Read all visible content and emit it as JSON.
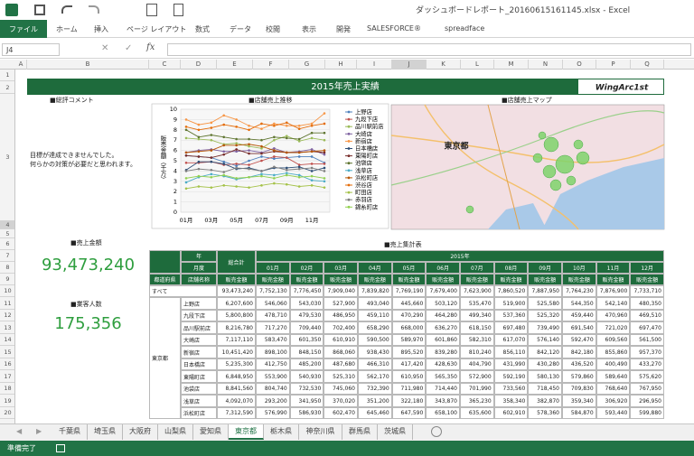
{
  "window": {
    "title": "ダッシュボードレポート_20160615161145.xlsx - Excel"
  },
  "ribbon_tabs": [
    "ファイル",
    "ホーム",
    "挿入",
    "ページ レイアウト",
    "数式",
    "データ",
    "校閲",
    "表示",
    "開発",
    "SALESFORCE®",
    "spreadface"
  ],
  "name_box": "J4",
  "function_label": "fx",
  "column_headers": [
    "A",
    "B",
    "C",
    "D",
    "E",
    "F",
    "G",
    "H",
    "I",
    "J",
    "K",
    "L",
    "M",
    "N",
    "O",
    "P",
    "Q"
  ],
  "row_numbers": [
    "1",
    "2",
    "3",
    "4",
    "5",
    "6",
    "7",
    "8",
    "9",
    "10",
    "11",
    "12",
    "13",
    "14",
    "15",
    "16",
    "17",
    "18",
    "19",
    "20"
  ],
  "dashboard": {
    "title": "2015年売上実績",
    "logo": "WingArc1st",
    "comment_heading": "■総評コメント",
    "comment_lines": [
      "目標が達成できませんでした。",
      "何らかの対策が必要だと思われます。"
    ],
    "chart_heading": "■店舗売上推移",
    "map_heading": "■店舗売上マップ",
    "sales_heading": "■売上金額",
    "sales_value": "93,473,240",
    "customers_heading": "■業客人数",
    "customers_value": "175,356",
    "table_heading": "■売上集計表"
  },
  "line_chart": {
    "type": "line",
    "y_label": "販売金額（千万）",
    "categories": [
      "01月",
      null,
      "03月",
      null,
      "05月",
      null,
      "07月",
      null,
      "09月",
      null,
      "11月",
      null
    ],
    "ylim": [
      0,
      10
    ],
    "yticks": [
      0,
      1,
      2,
      3,
      4,
      5,
      6,
      7,
      8,
      9,
      10
    ],
    "grid": true,
    "series": [
      {
        "name": "上野店",
        "color": "#4f81bd",
        "values": [
          5.5,
          5.4,
          5.3,
          4.9,
          4.5,
          5.0,
          5.4,
          5.2,
          5.3,
          5.4,
          5.4,
          4.8
        ]
      },
      {
        "name": "九段下店",
        "color": "#c0504d",
        "values": [
          4.8,
          4.8,
          4.9,
          4.6,
          4.7,
          4.6,
          5.0,
          5.4,
          5.3,
          4.6,
          4.7,
          4.7
        ]
      },
      {
        "name": "品川駅前店",
        "color": "#9bbb59",
        "values": [
          7.2,
          7.1,
          7.0,
          6.6,
          6.7,
          6.4,
          6.2,
          7.0,
          7.4,
          6.9,
          7.2,
          7.0
        ]
      },
      {
        "name": "大崎店",
        "color": "#8064a2",
        "values": [
          5.8,
          6.0,
          6.1,
          5.9,
          5.9,
          6.0,
          5.8,
          6.2,
          5.8,
          5.9,
          6.1,
          5.6
        ]
      },
      {
        "name": "新宿店",
        "color": "#f79646",
        "values": [
          9.0,
          8.5,
          8.7,
          9.4,
          9.0,
          8.4,
          8.1,
          8.6,
          8.4,
          8.4,
          8.6,
          9.6
        ]
      },
      {
        "name": "日本橋店",
        "color": "#2c4d75",
        "values": [
          4.1,
          4.9,
          4.9,
          4.7,
          4.2,
          4.3,
          4.0,
          4.3,
          4.3,
          4.4,
          4.0,
          4.3
        ]
      },
      {
        "name": "東陽町店",
        "color": "#772c2a",
        "values": [
          5.5,
          5.4,
          5.3,
          5.6,
          6.1,
          5.7,
          5.7,
          5.9,
          5.8,
          5.8,
          5.9,
          5.8
        ]
      },
      {
        "name": "池袋店",
        "color": "#5f7530",
        "values": [
          8.0,
          7.3,
          7.5,
          7.3,
          7.1,
          7.1,
          7.0,
          7.3,
          7.2,
          7.1,
          7.7,
          7.7
        ]
      },
      {
        "name": "浅草店",
        "color": "#4bacc6",
        "values": [
          2.9,
          3.4,
          3.7,
          3.5,
          3.2,
          3.4,
          3.7,
          3.6,
          3.8,
          3.6,
          3.1,
          3.0
        ]
      },
      {
        "name": "浜松町店",
        "color": "#b65708",
        "values": [
          5.8,
          5.9,
          6.0,
          6.5,
          6.5,
          6.6,
          6.4,
          6.0,
          5.8,
          5.8,
          5.9,
          6.0
        ]
      },
      {
        "name": "渋谷店",
        "color": "#e46c0a",
        "values": [
          8.3,
          8.0,
          8.2,
          8.5,
          8.3,
          8.0,
          8.6,
          8.4,
          8.7,
          8.1,
          8.4,
          8.6
        ]
      },
      {
        "name": "町田店",
        "color": "#a5c249",
        "values": [
          2.3,
          2.5,
          2.4,
          2.6,
          2.5,
          2.4,
          2.6,
          2.8,
          2.7,
          2.5,
          2.6,
          2.4
        ]
      },
      {
        "name": "赤羽店",
        "color": "#7f7f7f",
        "values": [
          4.0,
          4.2,
          4.1,
          3.9,
          4.3,
          4.2,
          4.0,
          4.4,
          4.1,
          4.2,
          4.3,
          4.0
        ]
      },
      {
        "name": "錦糸町店",
        "color": "#92d050",
        "values": [
          3.3,
          3.5,
          3.4,
          3.6,
          3.3,
          3.4,
          3.5,
          3.3,
          3.6,
          3.4,
          3.5,
          3.3
        ]
      }
    ]
  },
  "map": {
    "labels": [
      "東京都"
    ]
  },
  "table": {
    "year_label": "年",
    "year_value": "2015年",
    "month_label": "月度",
    "total_label": "総合計",
    "pref_label": "都道府県",
    "store_label": "店舗名称",
    "metric": "販売金額",
    "months": [
      "01月",
      "02月",
      "03月",
      "04月",
      "05月",
      "06月",
      "07月",
      "08月",
      "09月",
      "10月",
      "11月",
      "12月"
    ],
    "all_label": "すべて",
    "all_row": [
      "93,473,240",
      "7,752,130",
      "7,776,450",
      "7,909,040",
      "7,839,820",
      "7,769,190",
      "7,679,400",
      "7,623,900",
      "7,860,520",
      "7,887,950",
      "7,764,230",
      "7,876,900",
      "7,733,710"
    ],
    "prefecture": "東京都",
    "rows": [
      {
        "store": "上野店",
        "values": [
          "6,207,600",
          "546,060",
          "543,030",
          "527,900",
          "493,040",
          "445,660",
          "503,120",
          "535,470",
          "519,900",
          "525,580",
          "544,350",
          "542,140",
          "480,350"
        ]
      },
      {
        "store": "九段下店",
        "values": [
          "5,800,800",
          "478,710",
          "479,530",
          "486,950",
          "459,110",
          "470,290",
          "464,280",
          "499,340",
          "537,360",
          "525,320",
          "459,440",
          "470,960",
          "469,510"
        ]
      },
      {
        "store": "品川駅前店",
        "values": [
          "8,216,780",
          "717,270",
          "709,440",
          "702,400",
          "658,290",
          "668,000",
          "636,270",
          "618,150",
          "697,480",
          "739,490",
          "691,540",
          "721,020",
          "697,470"
        ]
      },
      {
        "store": "大崎店",
        "values": [
          "7,117,110",
          "583,470",
          "601,350",
          "610,910",
          "590,500",
          "589,970",
          "601,860",
          "582,310",
          "617,070",
          "576,140",
          "592,470",
          "609,560",
          "561,500"
        ]
      },
      {
        "store": "新宿店",
        "values": [
          "10,451,420",
          "898,100",
          "848,150",
          "868,060",
          "938,430",
          "895,520",
          "839,280",
          "810,240",
          "856,110",
          "842,120",
          "842,180",
          "855,860",
          "957,370"
        ]
      },
      {
        "store": "日本橋店",
        "values": [
          "5,235,300",
          "412,750",
          "485,200",
          "487,680",
          "466,310",
          "417,420",
          "428,630",
          "404,790",
          "431,990",
          "430,280",
          "436,520",
          "400,490",
          "433,270"
        ]
      },
      {
        "store": "東陽町店",
        "values": [
          "6,848,950",
          "553,900",
          "540,930",
          "525,310",
          "562,170",
          "610,950",
          "565,350",
          "572,900",
          "592,190",
          "580,130",
          "579,860",
          "589,640",
          "575,620"
        ]
      },
      {
        "store": "池袋店",
        "values": [
          "8,841,560",
          "804,740",
          "732,530",
          "745,060",
          "732,390",
          "711,980",
          "714,440",
          "701,990",
          "733,560",
          "718,450",
          "709,830",
          "768,640",
          "767,950"
        ]
      },
      {
        "store": "浅草店",
        "values": [
          "4,092,070",
          "293,200",
          "341,950",
          "370,020",
          "351,200",
          "322,180",
          "343,870",
          "365,230",
          "358,340",
          "382,870",
          "359,340",
          "306,920",
          "296,950"
        ]
      },
      {
        "store": "浜松町店",
        "values": [
          "7,312,590",
          "576,990",
          "586,930",
          "602,470",
          "645,460",
          "647,590",
          "658,100",
          "635,600",
          "602,910",
          "578,360",
          "584,870",
          "593,440",
          "599,880"
        ]
      }
    ]
  },
  "sheet_tabs": [
    "千葉県",
    "埼玉県",
    "大阪府",
    "山梨県",
    "愛知県",
    "東京都",
    "栃木県",
    "神奈川県",
    "群馬県",
    "茨城県"
  ],
  "active_sheet": 5,
  "status": "準備完了"
}
